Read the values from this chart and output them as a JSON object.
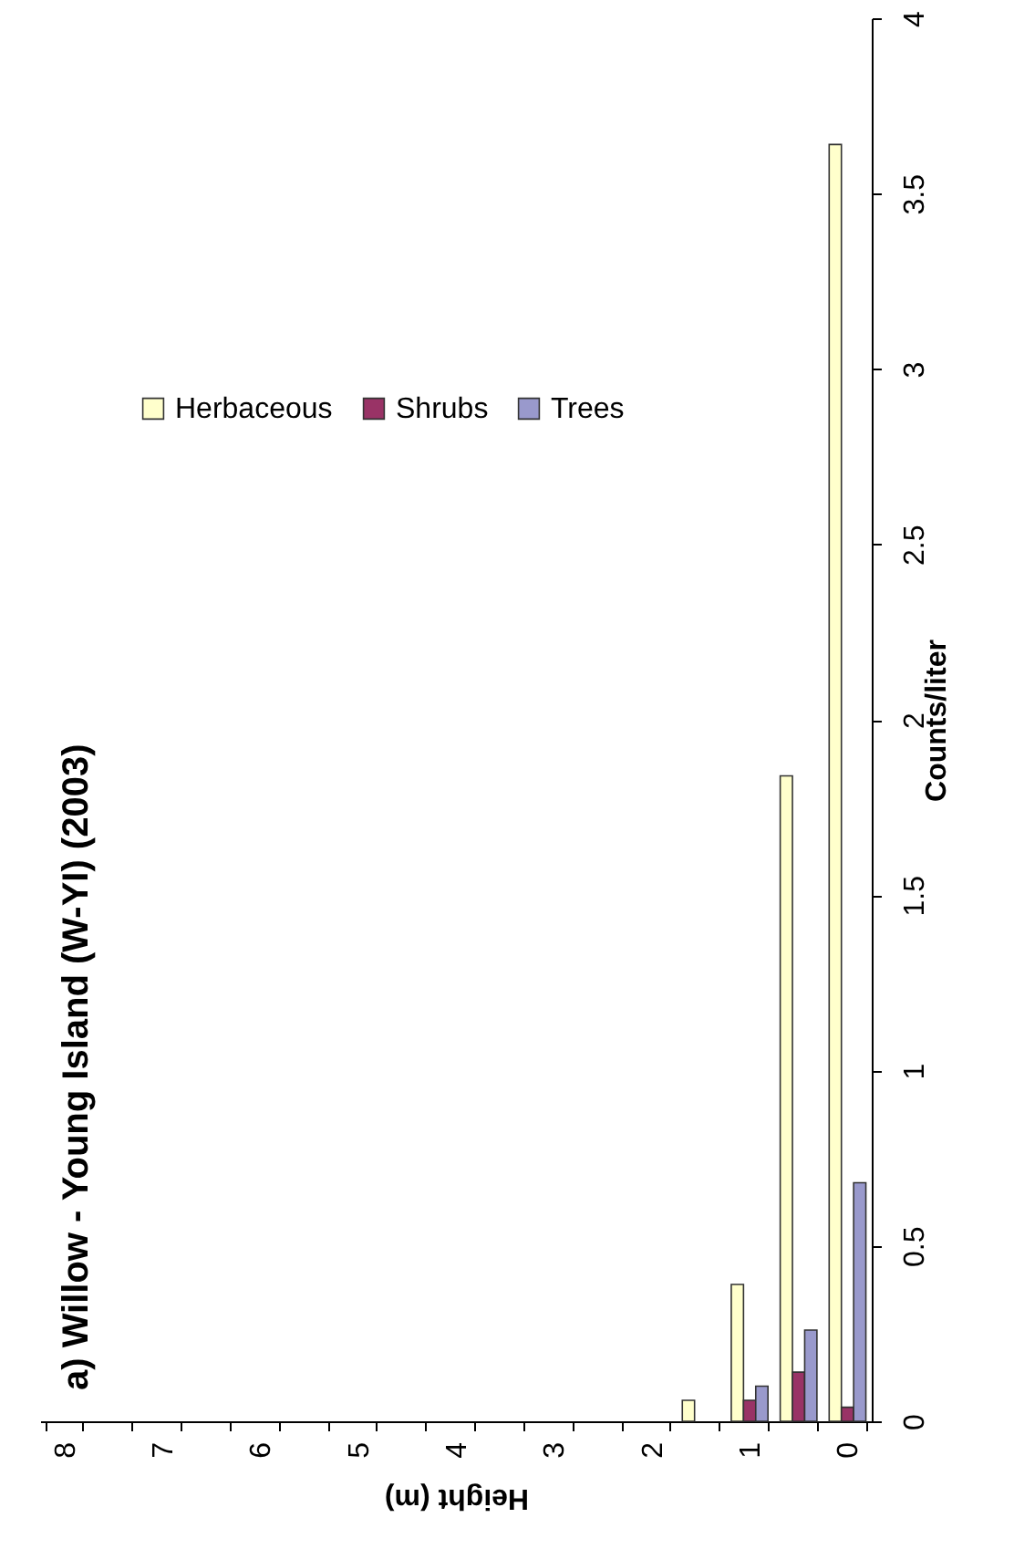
{
  "chart_data": {
    "type": "bar",
    "title": "a) Willow - Young Island (W-YI) (2003)",
    "xlabel": "Height (m)",
    "ylabel": "Counts/liter",
    "categories": [
      "8",
      null,
      "7",
      null,
      "6",
      null,
      "5",
      null,
      "4",
      null,
      "3",
      null,
      "2",
      null,
      "1",
      null,
      "0"
    ],
    "series": [
      {
        "name": "Herbaceous",
        "color": "#ffffcc",
        "values": [
          null,
          null,
          null,
          null,
          null,
          null,
          null,
          null,
          null,
          null,
          null,
          null,
          null,
          0.06,
          0.39,
          1.84,
          3.64
        ]
      },
      {
        "name": "Shrubs",
        "color": "#993366",
        "values": [
          null,
          null,
          null,
          null,
          null,
          null,
          null,
          null,
          null,
          null,
          null,
          null,
          null,
          null,
          0.06,
          0.14,
          0.04
        ]
      },
      {
        "name": "Trees",
        "color": "#9999cc",
        "values": [
          null,
          null,
          null,
          null,
          null,
          null,
          null,
          null,
          null,
          null,
          null,
          null,
          null,
          null,
          0.1,
          0.26,
          0.68
        ]
      }
    ],
    "ylim": [
      0,
      4
    ],
    "yticks": [
      0,
      0.5,
      1,
      1.5,
      2,
      2.5,
      3,
      3.5,
      4
    ],
    "grid": false,
    "legend": "top left"
  }
}
